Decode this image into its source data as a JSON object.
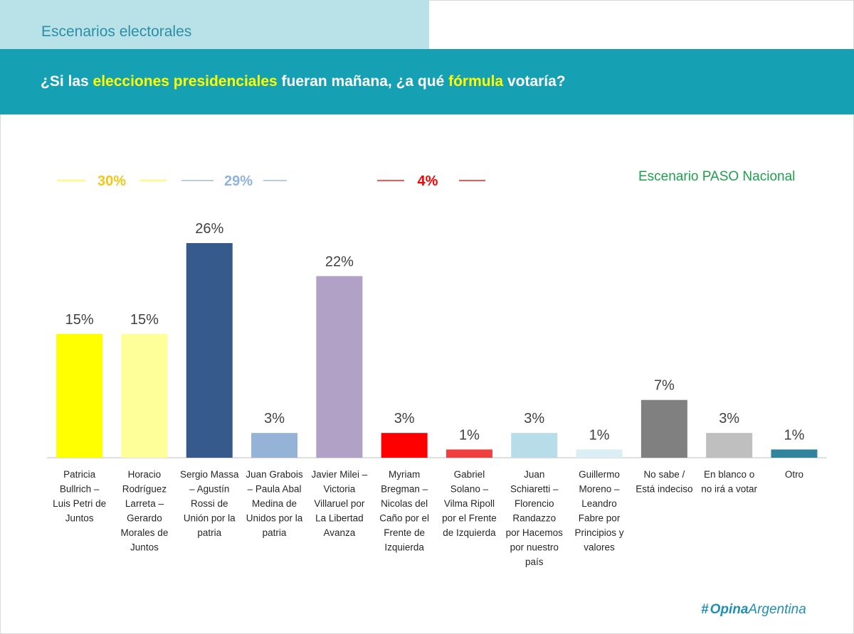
{
  "header": {
    "tab_title": "Escenarios electorales",
    "question": {
      "part1": "¿Si las ",
      "hl1": "elecciones presidenciales",
      "part2": " fueran mañana, ¿a qué ",
      "hl2": "fórmula",
      "part3": " votaría?"
    }
  },
  "scenario_label": "Escenario PASO Nacional",
  "aggregates": [
    {
      "label": "30%",
      "color": "#f5c518",
      "line_color": "#ffff66"
    },
    {
      "label": "29%",
      "color": "#8fb3dc",
      "line_color": "#b8cce4"
    },
    {
      "label": "4%",
      "color": "#ff0000",
      "line_color": "#ff5555"
    }
  ],
  "logo": {
    "hash": "#",
    "bold": "Opina",
    "light": "Argentina"
  },
  "chart_data": {
    "type": "bar",
    "title": "",
    "ylim": [
      0,
      30
    ],
    "grid": false,
    "categories": [
      [
        "Patricia",
        "Bullrich –",
        "Luis Petri de",
        "Juntos"
      ],
      [
        "Horacio",
        "Rodríguez",
        "Larreta –",
        "Gerardo",
        "Morales de",
        "Juntos"
      ],
      [
        "Sergio Massa",
        "– Agustín",
        "Rossi de",
        "Unión por la",
        "patria"
      ],
      [
        "Juan Grabois",
        "– Paula Abal",
        "Medina de",
        "Unidos por la",
        "patria"
      ],
      [
        "Javier Milei –",
        "Victoria",
        "Villaruel por",
        "La Libertad",
        "Avanza"
      ],
      [
        "Myriam",
        "Bregman –",
        "Nicolas del",
        "Caño por el",
        "Frente de",
        "Izquierda"
      ],
      [
        "Gabriel",
        "Solano –",
        "Vilma Ripoll",
        "por el Frente",
        "de Izquierda"
      ],
      [
        "Juan",
        "Schiaretti –",
        "Florencio",
        "Randazzo",
        "por Hacemos",
        "por nuestro",
        "país"
      ],
      [
        "Guillermo",
        "Moreno –",
        "Leandro",
        "Fabre por",
        "Principios y",
        "valores"
      ],
      [
        "No sabe /",
        "Está indeciso"
      ],
      [
        "En blanco o",
        "no irá a votar"
      ],
      [
        "Otro"
      ]
    ],
    "values": [
      15,
      15,
      26,
      3,
      22,
      3,
      1,
      3,
      1,
      7,
      3,
      1
    ],
    "value_labels": [
      "15%",
      "15%",
      "26%",
      "3%",
      "22%",
      "3%",
      "1%",
      "3%",
      "1%",
      "7%",
      "3%",
      "1%"
    ],
    "colors": [
      "#ffff00",
      "#ffff99",
      "#375a8c",
      "#95b3d7",
      "#b2a1c7",
      "#ff0000",
      "#f04040",
      "#b7dee8",
      "#dbeef3",
      "#808080",
      "#bfbfbf",
      "#31849b"
    ]
  }
}
